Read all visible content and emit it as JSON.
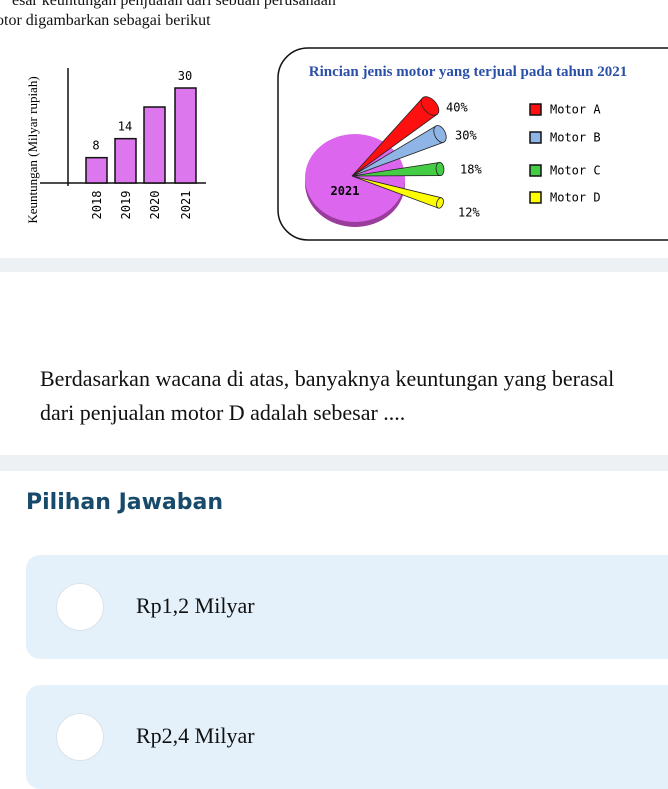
{
  "intro": {
    "line1": "esar keuntungan penjualan dari sebuah perusahaan",
    "line2": "otor digambarkan sebagai berikut"
  },
  "chart_data": [
    {
      "type": "bar",
      "ylabel": "Keuntungan (Milyar rupiah)",
      "categories": [
        "2018",
        "2019",
        "2020",
        "2021"
      ],
      "values": [
        8,
        14,
        24,
        30
      ],
      "value_labels": [
        "8",
        "14",
        null,
        "30"
      ],
      "color": "#dd77ee",
      "ylim": [
        0,
        30
      ]
    },
    {
      "type": "pie",
      "title": "Rincian jenis motor yang terjual pada tahun 2021",
      "center_label": "2021",
      "categories": [
        "Motor A",
        "Motor B",
        "Motor C",
        "Motor D"
      ],
      "values": [
        40,
        30,
        18,
        12
      ],
      "value_labels": [
        "40%",
        "30%",
        "18%",
        "12%"
      ],
      "colors": [
        "#ff1010",
        "#8fb4e6",
        "#44cc44",
        "#ffff00"
      ]
    }
  ],
  "question": "Berdasarkan wacana di atas, banyaknya keuntungan yang berasal dari penjualan motor D adalah sebesar ....",
  "answers": {
    "heading": "Pilihan Jawaban",
    "options": [
      "Rp1,2 Milyar",
      "Rp2,4 Milyar"
    ]
  }
}
